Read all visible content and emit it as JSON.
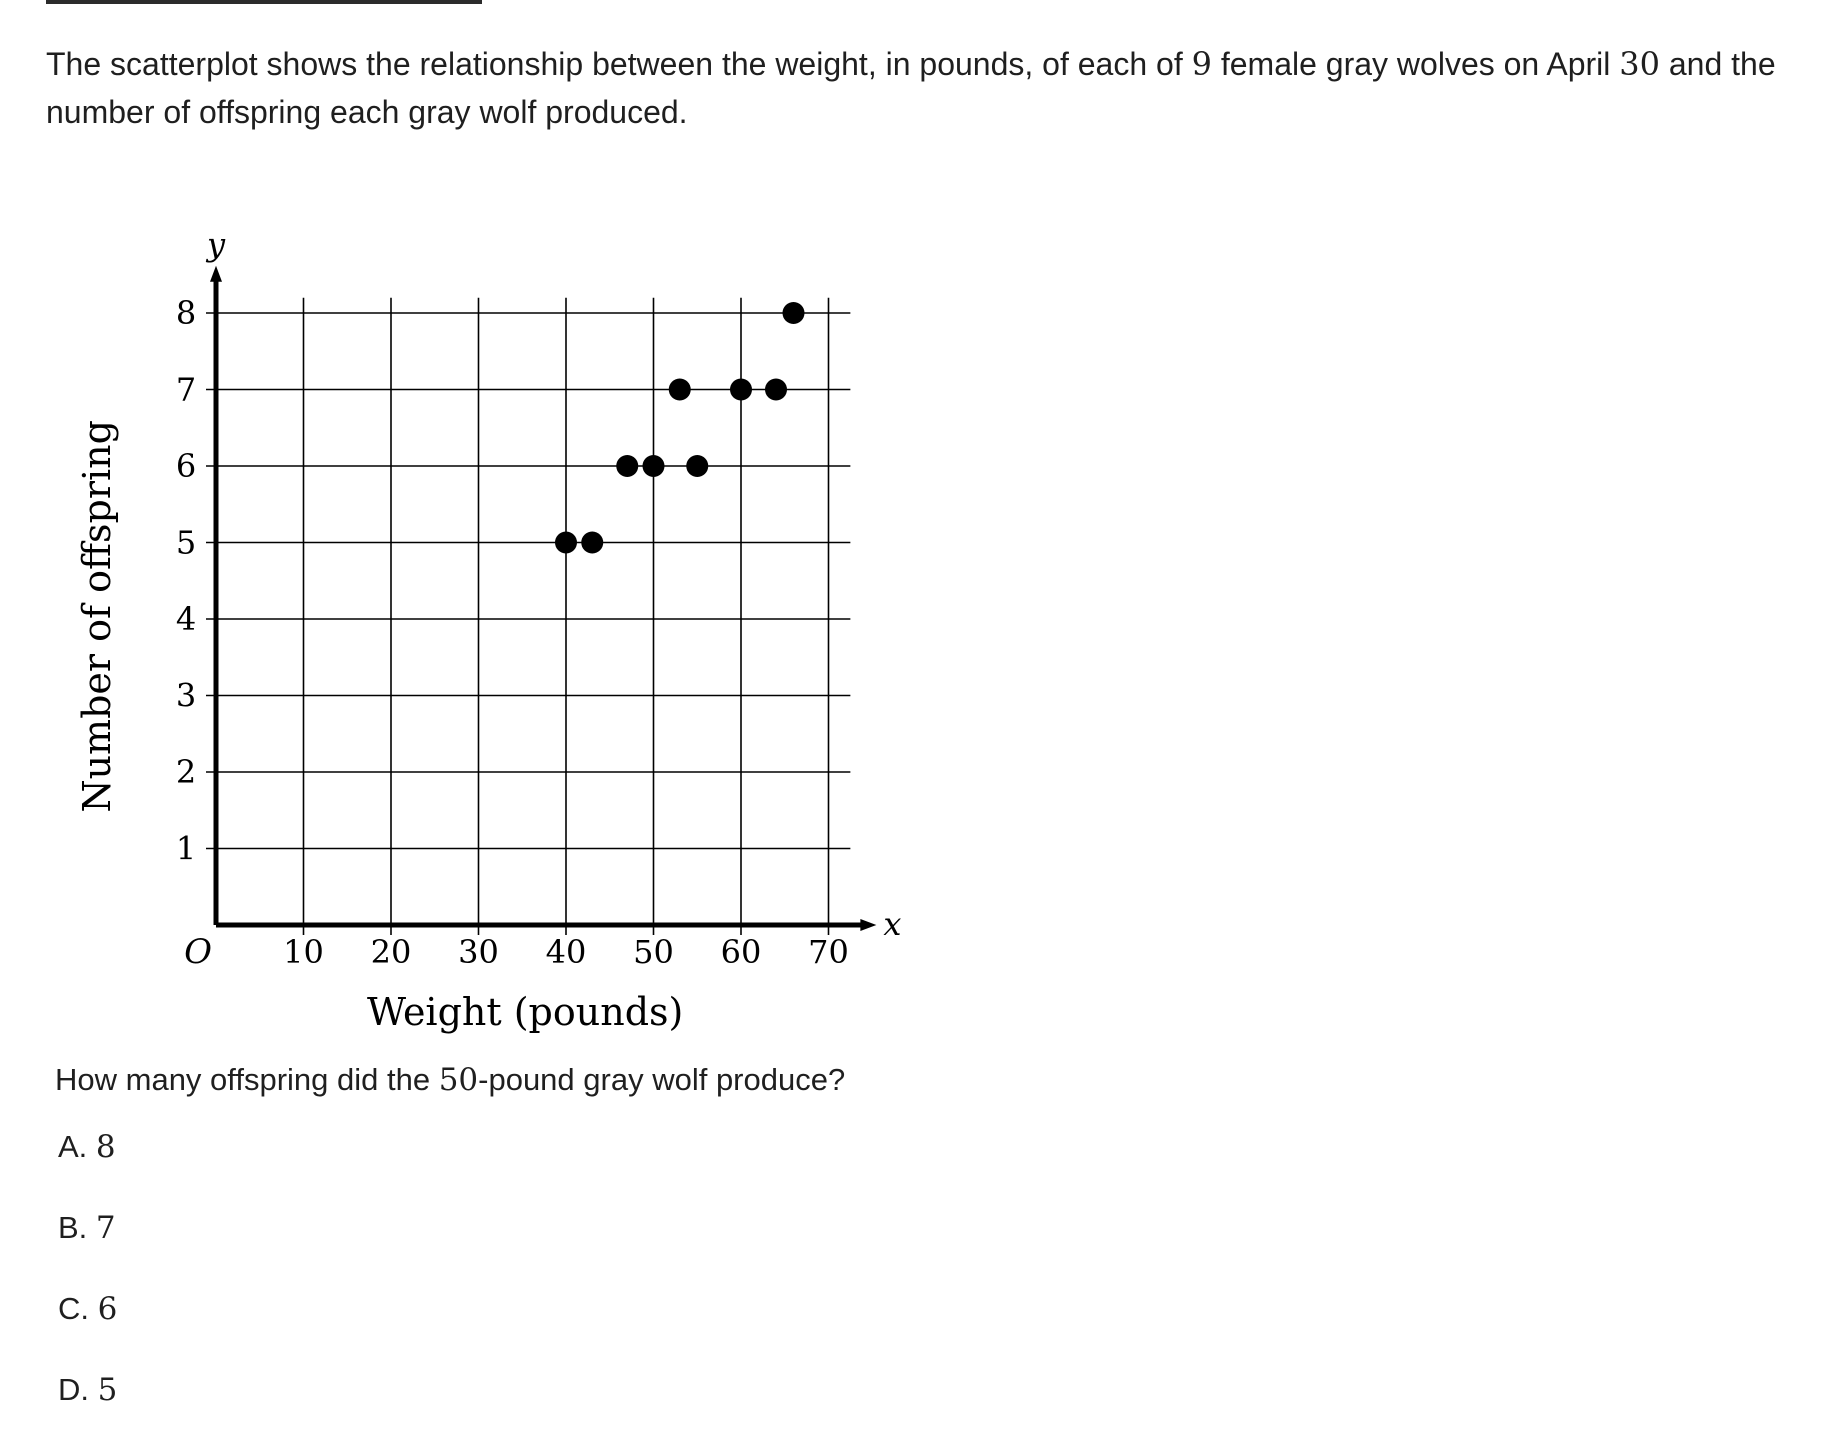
{
  "problem": {
    "stem_parts": [
      "The scatterplot shows the relationship between the weight, in pounds, of each of ",
      "9",
      " female gray wolves on April ",
      "30",
      " and the number of offspring each gray wolf produced."
    ],
    "question_parts": [
      "How many offspring did the ",
      "50",
      "-pound gray wolf produce?"
    ],
    "choices": [
      {
        "letter": "A.",
        "value": "8"
      },
      {
        "letter": "B.",
        "value": "7"
      },
      {
        "letter": "C.",
        "value": "6"
      },
      {
        "letter": "D.",
        "value": "5"
      }
    ]
  },
  "chart_data": {
    "type": "scatter",
    "xlabel": "Weight (pounds)",
    "ylabel": "Number of offspring",
    "x_axis_letter": "x",
    "y_axis_letter": "y",
    "origin_label": "O",
    "xlim": [
      0,
      72
    ],
    "ylim": [
      0,
      8.3
    ],
    "x_ticks": [
      10,
      20,
      30,
      40,
      50,
      60,
      70
    ],
    "y_ticks": [
      1,
      2,
      3,
      4,
      5,
      6,
      7,
      8
    ],
    "grid": true,
    "points": [
      {
        "x": 40,
        "y": 5
      },
      {
        "x": 43,
        "y": 5
      },
      {
        "x": 47,
        "y": 6
      },
      {
        "x": 50,
        "y": 6
      },
      {
        "x": 55,
        "y": 6
      },
      {
        "x": 53,
        "y": 7
      },
      {
        "x": 60,
        "y": 7
      },
      {
        "x": 64,
        "y": 7
      },
      {
        "x": 66,
        "y": 8
      }
    ],
    "marker_color": "#000000"
  }
}
